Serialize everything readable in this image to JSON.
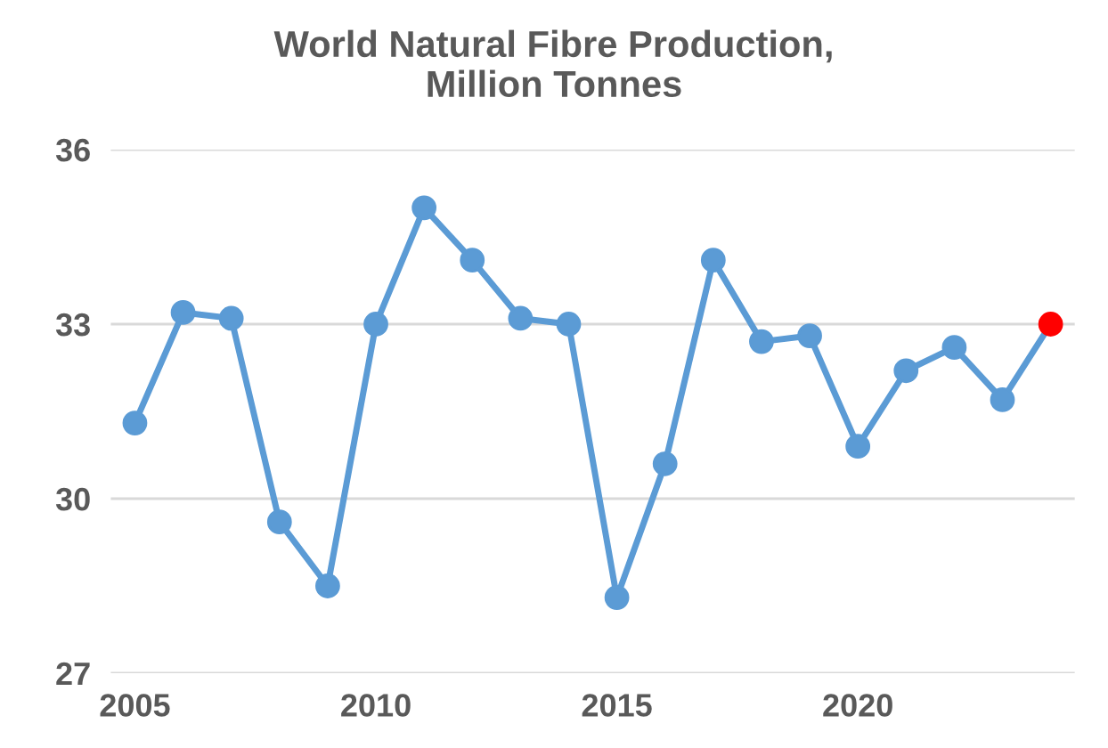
{
  "chart_data": {
    "type": "line",
    "title": "World Natural Fibre Production,\nMillion Tonnes",
    "x": [
      2005,
      2006,
      2007,
      2008,
      2009,
      2010,
      2011,
      2012,
      2013,
      2014,
      2015,
      2016,
      2017,
      2018,
      2019,
      2020,
      2021,
      2022,
      2023,
      2024
    ],
    "series": [
      {
        "color": "#5b9bd5",
        "colors": [
          "#5b9bd5",
          "#5b9bd5",
          "#5b9bd5",
          "#5b9bd5",
          "#5b9bd5",
          "#5b9bd5",
          "#5b9bd5",
          "#5b9bd5",
          "#5b9bd5",
          "#5b9bd5",
          "#5b9bd5",
          "#5b9bd5",
          "#5b9bd5",
          "#5b9bd5",
          "#5b9bd5",
          "#5b9bd5",
          "#5b9bd5",
          "#5b9bd5",
          "#5b9bd5",
          "#ff0000"
        ],
        "values": [
          31.3,
          33.2,
          33.1,
          29.6,
          28.5,
          33.0,
          35.0,
          34.1,
          33.1,
          33.0,
          28.3,
          30.6,
          34.1,
          32.7,
          32.8,
          30.9,
          32.2,
          32.6,
          31.7,
          33.0
        ]
      }
    ],
    "xlim": [
      2004.5,
      2024.5
    ],
    "xticks": [
      2005,
      2010,
      2015,
      2020
    ],
    "ylim": [
      27,
      36
    ],
    "yticks": [
      27,
      30,
      33,
      36
    ],
    "grid": "y",
    "marker": "circle",
    "line_style": "solid",
    "legend": false
  }
}
